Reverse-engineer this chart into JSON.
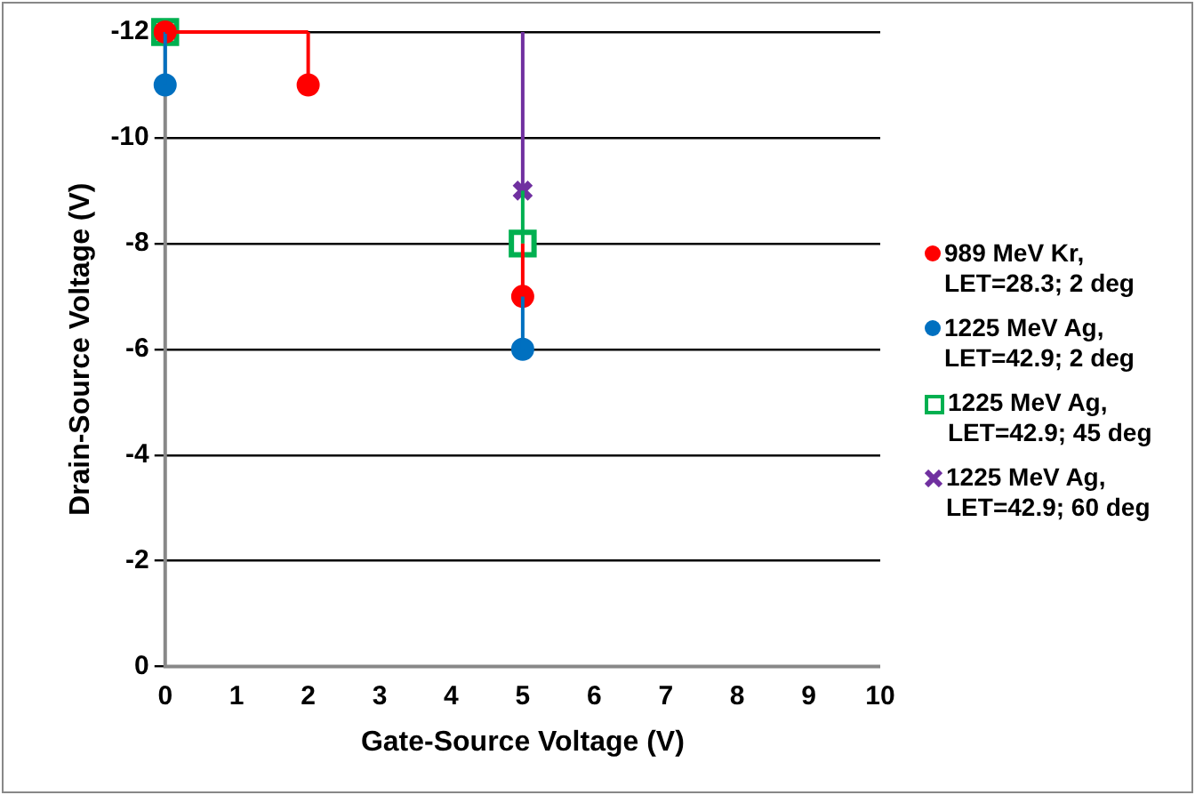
{
  "chart_data": {
    "type": "scatter",
    "xlabel": "Gate-Source Voltage (V)",
    "ylabel": "Drain-Source Voltage (V)",
    "xlim": [
      0,
      10
    ],
    "xticks": [
      0,
      1,
      2,
      3,
      4,
      5,
      6,
      7,
      8,
      9,
      10
    ],
    "ylim": [
      0,
      -12
    ],
    "yticks": [
      0,
      -2,
      -4,
      -6,
      -8,
      -10,
      -12
    ],
    "grid": "y",
    "legend": "right",
    "series": [
      {
        "name": "989 MeV Kr, LET=28.3; 2 deg",
        "color": "#ff0000",
        "marker": "circle",
        "x": [
          0,
          2,
          5
        ],
        "values": [
          -12,
          -11,
          -7
        ],
        "errors": [
          null,
          [
            -12,
            -11
          ],
          [
            -8,
            -7
          ]
        ],
        "xerrors": [
          [
            0,
            2
          ],
          null,
          null
        ]
      },
      {
        "name": "1225 MeV Ag, LET=42.9; 2 deg",
        "color": "#0070c0",
        "marker": "circle",
        "x": [
          0,
          5
        ],
        "values": [
          -11,
          -6
        ],
        "errors": [
          [
            -12,
            -11
          ],
          [
            -7,
            -6
          ]
        ]
      },
      {
        "name": "1225 MeV Ag, LET=42.9; 45 deg",
        "color": "#00b050",
        "marker": "square",
        "x": [
          0,
          5
        ],
        "values": [
          -12,
          -8
        ],
        "errors": [
          null,
          [
            -9,
            -8
          ]
        ]
      },
      {
        "name": "1225 MeV Ag, LET=42.9; 60 deg",
        "color": "#7030a0",
        "marker": "cross",
        "x": [
          5
        ],
        "values": [
          -9
        ],
        "errors": [
          [
            -12,
            -9
          ]
        ]
      }
    ]
  }
}
